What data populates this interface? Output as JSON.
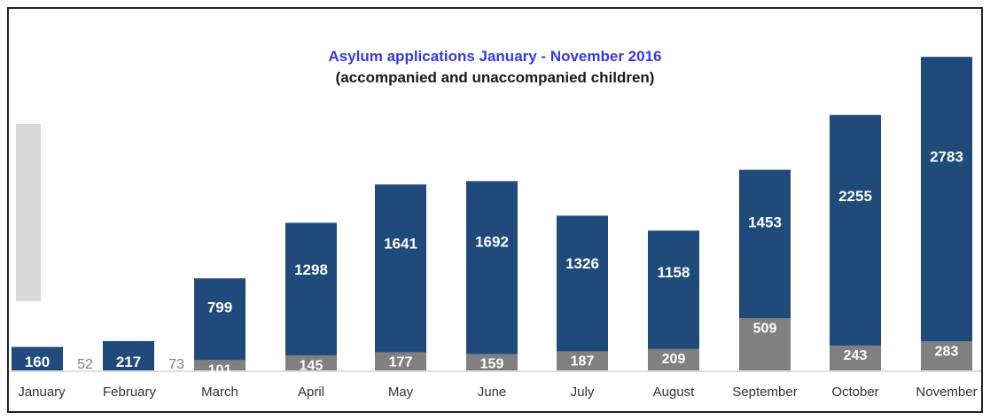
{
  "chart_data": {
    "type": "bar",
    "stacked": true,
    "title": "Asylum applications January - November 2016",
    "subtitle": "(accompanied and unaccompanied children)",
    "categories": [
      "January",
      "February",
      "March",
      "April",
      "May",
      "June",
      "July",
      "August",
      "September",
      "October",
      "November"
    ],
    "series": [
      {
        "values": [
          160,
          217,
          799,
          1298,
          1641,
          1692,
          1326,
          1158,
          1453,
          2255,
          2783
        ],
        "color": "#1f4a7a"
      },
      {
        "values": [
          52,
          73,
          101,
          145,
          177,
          159,
          187,
          209,
          509,
          243,
          283
        ],
        "color": "#808080"
      }
    ],
    "xlabel": "",
    "ylabel": "",
    "grid": false
  }
}
